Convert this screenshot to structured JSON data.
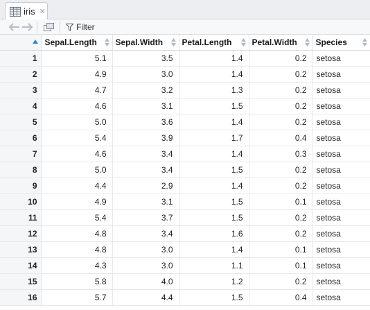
{
  "tab": {
    "label": "iris",
    "icon": "table-icon",
    "close_icon": "close-icon"
  },
  "toolbar": {
    "back_icon": "back-arrow-icon",
    "forward_icon": "forward-arrow-icon",
    "popout_icon": "popout-window-icon",
    "filter_label": "Filter",
    "filter_icon": "funnel-icon"
  },
  "columns": [
    "Sepal.Length",
    "Sepal.Width",
    "Petal.Length",
    "Petal.Width",
    "Species"
  ],
  "rows": [
    [
      "1",
      "5.1",
      "3.5",
      "1.4",
      "0.2",
      "setosa"
    ],
    [
      "2",
      "4.9",
      "3.0",
      "1.4",
      "0.2",
      "setosa"
    ],
    [
      "3",
      "4.7",
      "3.2",
      "1.3",
      "0.2",
      "setosa"
    ],
    [
      "4",
      "4.6",
      "3.1",
      "1.5",
      "0.2",
      "setosa"
    ],
    [
      "5",
      "5.0",
      "3.6",
      "1.4",
      "0.2",
      "setosa"
    ],
    [
      "6",
      "5.4",
      "3.9",
      "1.7",
      "0.4",
      "setosa"
    ],
    [
      "7",
      "4.6",
      "3.4",
      "1.4",
      "0.3",
      "setosa"
    ],
    [
      "8",
      "5.0",
      "3.4",
      "1.5",
      "0.2",
      "setosa"
    ],
    [
      "9",
      "4.4",
      "2.9",
      "1.4",
      "0.2",
      "setosa"
    ],
    [
      "10",
      "4.9",
      "3.1",
      "1.5",
      "0.1",
      "setosa"
    ],
    [
      "11",
      "5.4",
      "3.7",
      "1.5",
      "0.2",
      "setosa"
    ],
    [
      "12",
      "4.8",
      "3.4",
      "1.6",
      "0.2",
      "setosa"
    ],
    [
      "13",
      "4.8",
      "3.0",
      "1.4",
      "0.1",
      "setosa"
    ],
    [
      "14",
      "4.3",
      "3.0",
      "1.1",
      "0.1",
      "setosa"
    ],
    [
      "15",
      "5.8",
      "4.0",
      "1.2",
      "0.2",
      "setosa"
    ],
    [
      "16",
      "5.7",
      "4.4",
      "1.5",
      "0.4",
      "setosa"
    ]
  ]
}
